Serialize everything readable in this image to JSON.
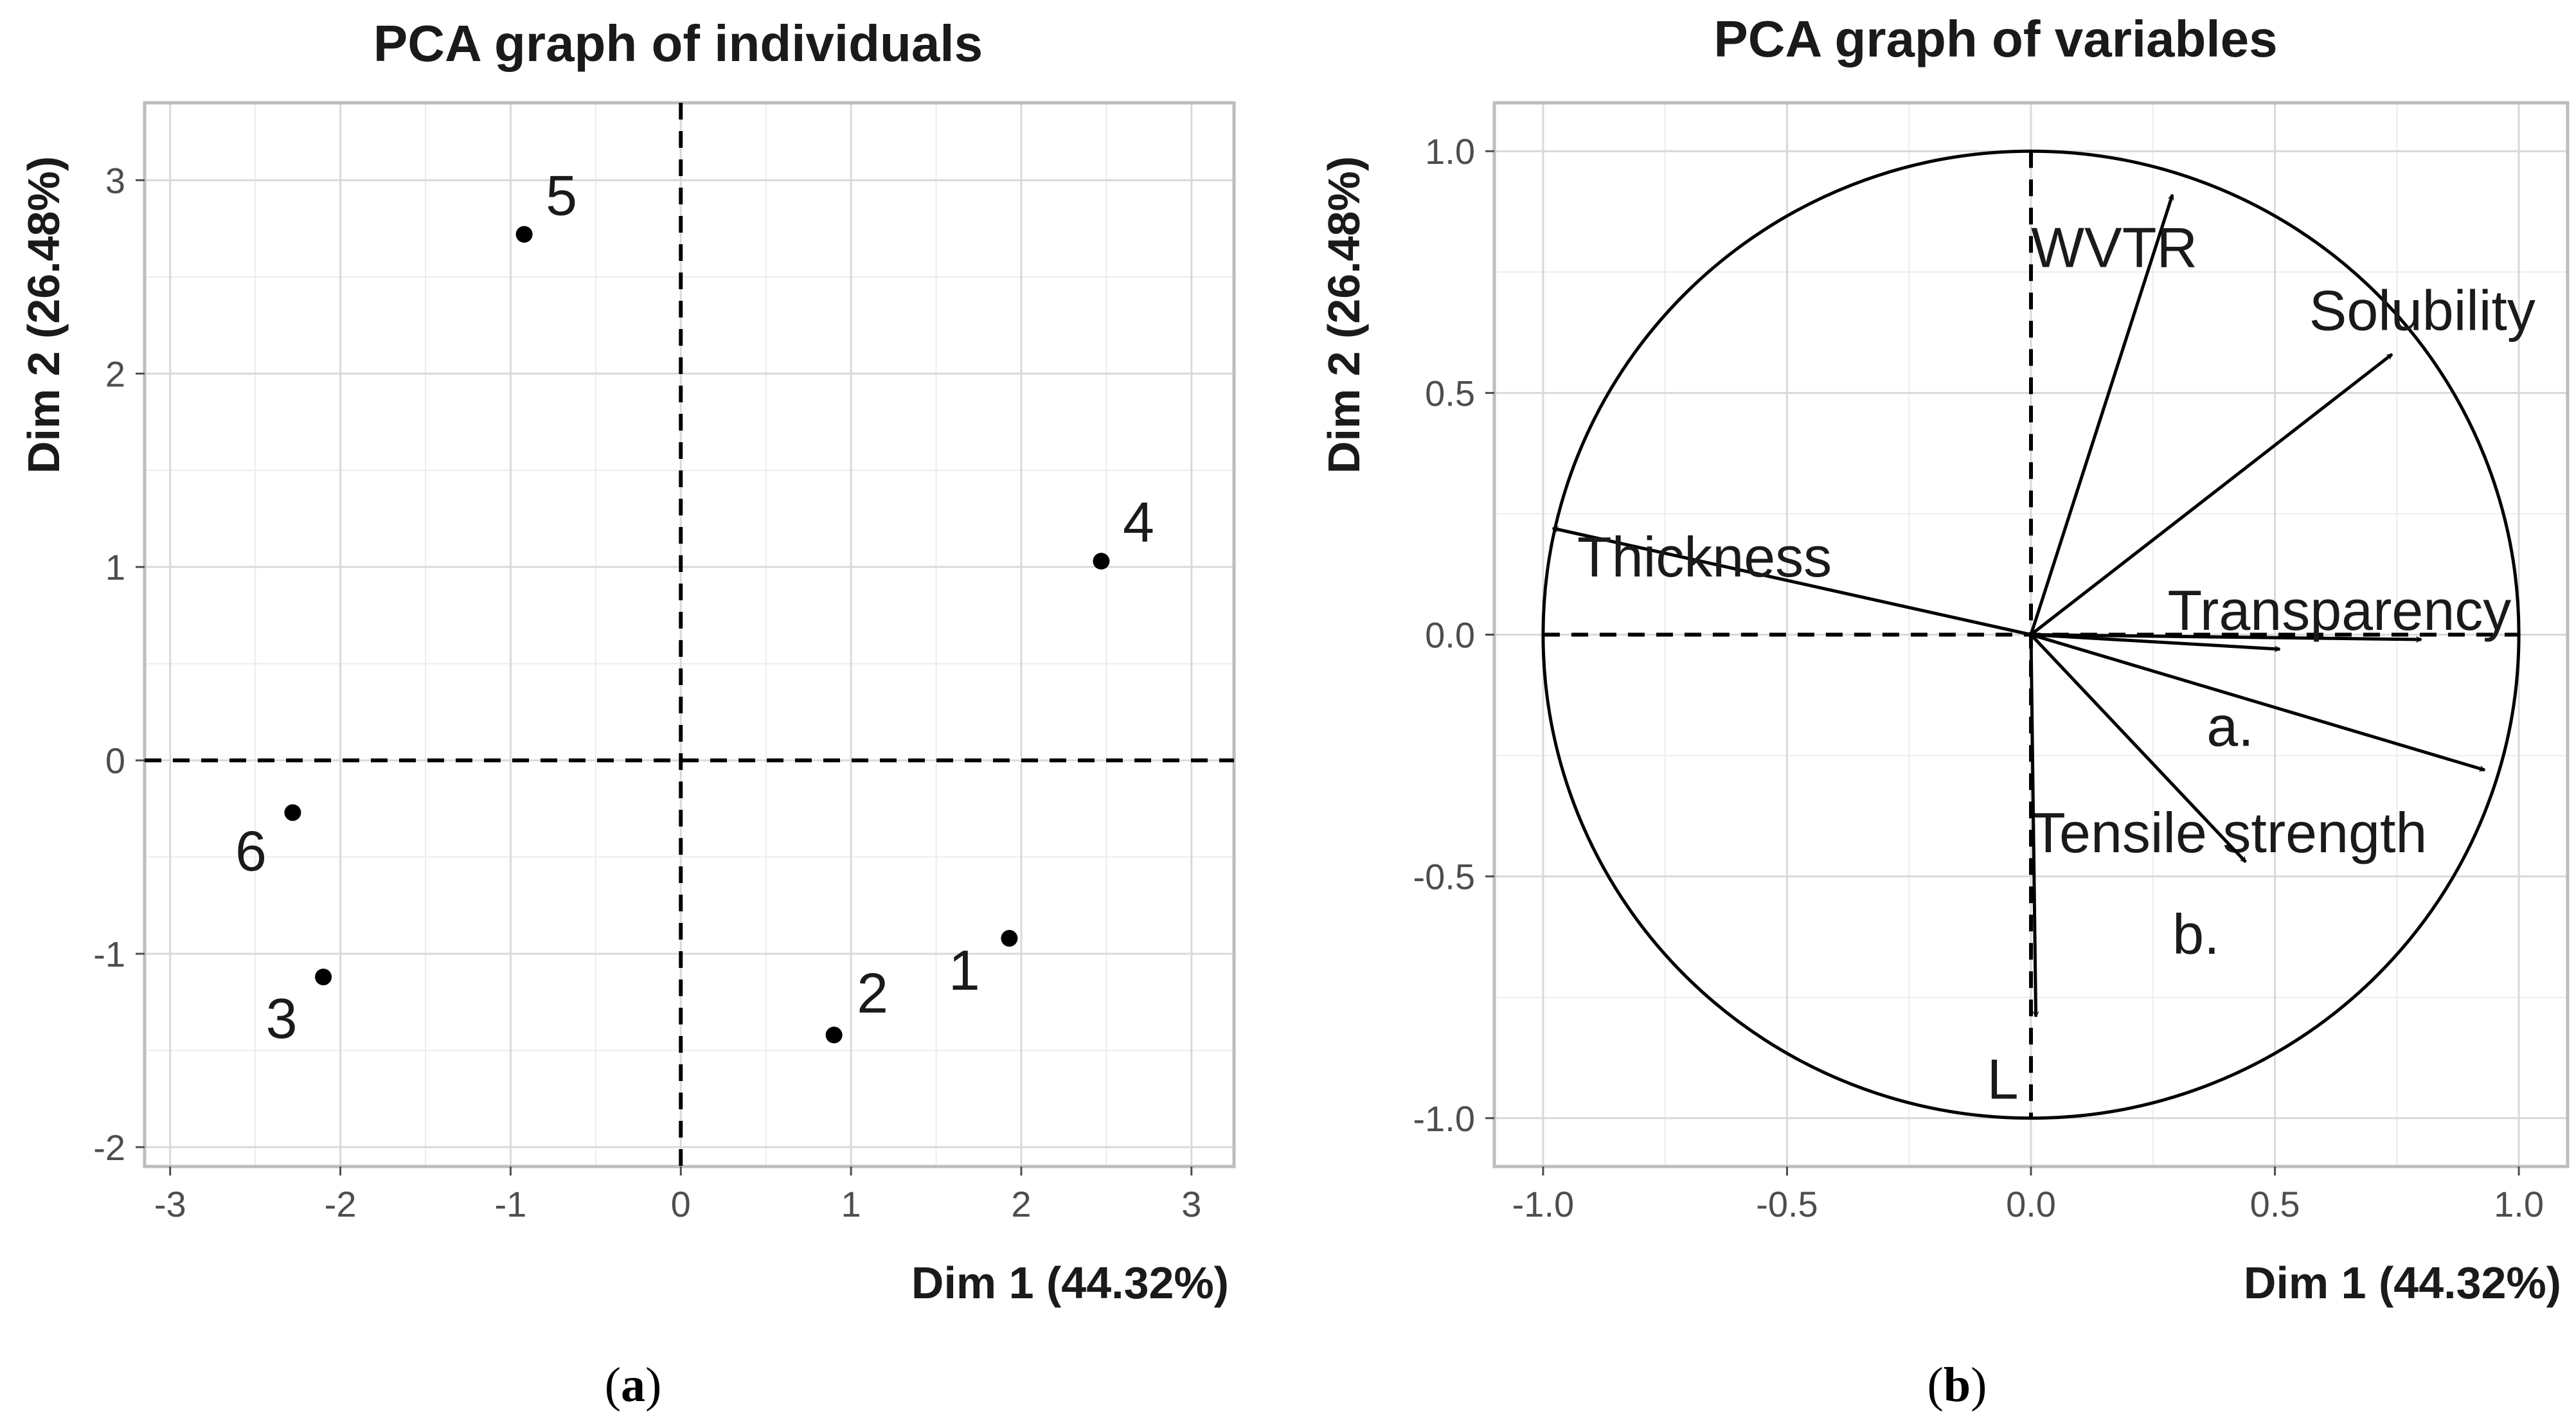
{
  "chart_data": [
    {
      "type": "scatter",
      "title": "PCA graph of individuals",
      "xlabel": "Dim 1 (44.32%)",
      "ylabel": "Dim 2 (26.48%)",
      "xlim": [
        -3.15,
        3.25
      ],
      "ylim": [
        -2.1,
        3.4
      ],
      "xticks": [
        -3,
        -2,
        -1,
        0,
        1,
        2,
        3
      ],
      "yticks": [
        -2,
        -1,
        0,
        1,
        2,
        3
      ],
      "grid": true,
      "points": [
        {
          "label": "1",
          "x": 1.93,
          "y": -0.92
        },
        {
          "label": "2",
          "x": 0.9,
          "y": -1.42
        },
        {
          "label": "3",
          "x": -2.1,
          "y": -1.12
        },
        {
          "label": "4",
          "x": 2.47,
          "y": 1.03
        },
        {
          "label": "5",
          "x": -0.92,
          "y": 2.72
        },
        {
          "label": "6",
          "x": -2.28,
          "y": -0.27
        }
      ],
      "panel_label": "a"
    },
    {
      "type": "scatter",
      "title": "PCA graph of variables",
      "xlabel": "Dim 1 (44.32%)",
      "ylabel": "Dim 2 (26.48%)",
      "xlim": [
        -1.1,
        1.1
      ],
      "ylim": [
        -1.1,
        1.1
      ],
      "xticks": [
        -1.0,
        -0.5,
        0.0,
        0.5,
        1.0
      ],
      "yticks": [
        -1.0,
        -0.5,
        0.0,
        0.5,
        1.0
      ],
      "tick_labels": [
        "-1.0",
        "-0.5",
        "0.0",
        "0.5",
        "1.0"
      ],
      "grid": true,
      "correlation_circle": true,
      "vectors": [
        {
          "label": "WVTR",
          "x": 0.29,
          "y": 0.91
        },
        {
          "label": "Solubility",
          "x": 0.74,
          "y": 0.58
        },
        {
          "label": "Thickness",
          "x": -0.98,
          "y": 0.22
        },
        {
          "label": "Transparency",
          "x": 0.8,
          "y": -0.01
        },
        {
          "label": "a.",
          "x": 0.51,
          "y": -0.03
        },
        {
          "label": "Tensile strength",
          "x": 0.93,
          "y": -0.28
        },
        {
          "label": "b.",
          "x": 0.44,
          "y": -0.47
        },
        {
          "label": "L",
          "x": 0.01,
          "y": -0.79
        }
      ],
      "panel_label": "b"
    }
  ]
}
